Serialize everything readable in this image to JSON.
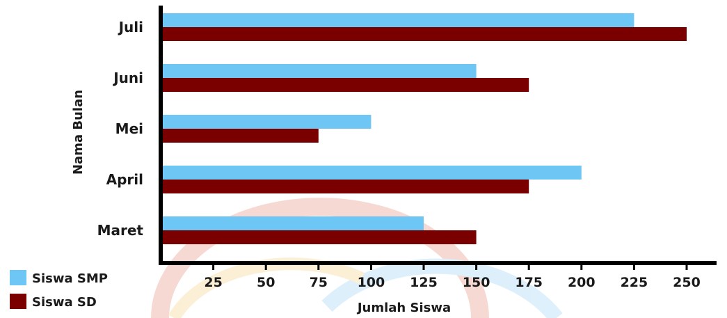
{
  "colors": {
    "smp": "#6ec6f5",
    "sd": "#7a0000",
    "axis": "#000000",
    "watermark_red": "#f6d5cf",
    "watermark_blue": "#d9eefb",
    "watermark_yellow": "#fbeed2"
  },
  "chart_data": {
    "type": "bar",
    "orientation": "horizontal",
    "title": "",
    "xlabel": "Jumlah Siswa",
    "ylabel": "Nama Bulan",
    "categories": [
      "Juli",
      "Juni",
      "Mei",
      "April",
      "Maret"
    ],
    "series": [
      {
        "name": "Siswa SMP",
        "values": [
          225,
          150,
          100,
          200,
          125
        ]
      },
      {
        "name": "Siswa SD",
        "values": [
          250,
          175,
          75,
          175,
          150
        ]
      }
    ],
    "xlim": [
      0,
      250
    ],
    "xticks": [
      25,
      50,
      75,
      100,
      125,
      150,
      175,
      200,
      225,
      250
    ],
    "grid": false,
    "legend_position": "bottom-left"
  }
}
